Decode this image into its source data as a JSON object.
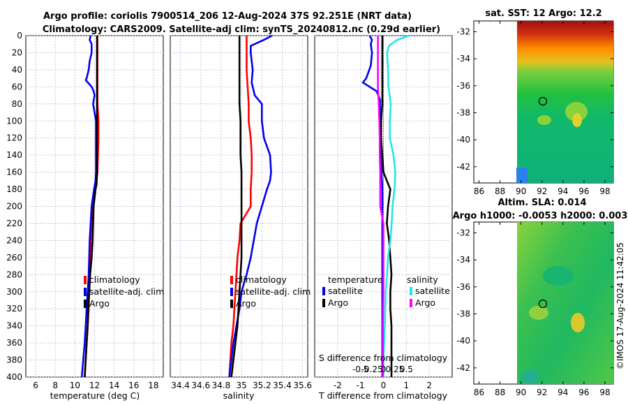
{
  "title_line1": "Argo profile: coriolis 7900514_206 12-Aug-2024 37S 92.251E (NRT data)",
  "title_line2": "Climatology: CARS2009. Satellite-adj clim: synTS_20240812.nc (0.29d earlier)",
  "colors": {
    "climatology": "#ff0000",
    "satellite": "#0000ee",
    "argo": "#000000",
    "sal_satellite": "#22e6e6",
    "sal_argo": "#ff00ff"
  },
  "chart_data": [
    {
      "type": "line",
      "id": "temperature",
      "xlabel": "temperature (deg C)",
      "xlim": [
        5,
        19
      ],
      "ylim": [
        0,
        400
      ],
      "xticks": [
        6,
        8,
        10,
        12,
        14,
        16,
        18
      ],
      "yticks": [
        0,
        20,
        40,
        60,
        80,
        100,
        120,
        140,
        160,
        180,
        200,
        220,
        240,
        260,
        280,
        300,
        320,
        340,
        360,
        380,
        400
      ],
      "series": [
        {
          "name": "climatology",
          "color": "#ff0000",
          "depth": [
            0,
            20,
            40,
            60,
            80,
            100,
            120,
            140,
            160,
            170,
            180,
            200,
            220,
            240,
            260,
            280,
            300,
            320,
            340,
            360,
            380,
            400
          ],
          "values": [
            12.3,
            12.3,
            12.3,
            12.3,
            12.3,
            12.4,
            12.4,
            12.35,
            12.3,
            12.2,
            12.1,
            11.9,
            11.7,
            11.6,
            11.55,
            11.5,
            11.45,
            11.4,
            11.3,
            11.2,
            11.1,
            11.0
          ]
        },
        {
          "name": "satellite-adj. clim",
          "color": "#0000ee",
          "depth": [
            0,
            5,
            10,
            20,
            30,
            40,
            50,
            52,
            60,
            65,
            70,
            80,
            90,
            100,
            110,
            120,
            140,
            160,
            170,
            180,
            200,
            220,
            240,
            260,
            280,
            300,
            320,
            340,
            360,
            380,
            400
          ],
          "values": [
            11.6,
            11.5,
            11.7,
            11.7,
            11.5,
            11.4,
            11.2,
            11.1,
            11.7,
            11.9,
            12.0,
            11.85,
            12.0,
            12.15,
            12.15,
            12.15,
            12.15,
            12.15,
            12.1,
            11.95,
            11.7,
            11.6,
            11.5,
            11.45,
            11.4,
            11.3,
            11.2,
            11.1,
            11.0,
            10.85,
            10.7
          ]
        },
        {
          "name": "Argo",
          "color": "#000000",
          "depth": [
            0,
            20,
            40,
            60,
            80,
            100,
            120,
            140,
            160,
            175,
            180,
            200,
            220,
            240,
            260,
            280,
            300,
            320,
            340,
            360,
            380,
            400
          ],
          "values": [
            12.25,
            12.25,
            12.25,
            12.25,
            12.25,
            12.25,
            12.25,
            12.25,
            12.25,
            12.2,
            12.1,
            11.9,
            11.85,
            11.8,
            11.7,
            11.55,
            11.45,
            11.35,
            11.3,
            11.2,
            11.1,
            11.0
          ]
        }
      ],
      "legend": [
        "climatology",
        "satellite-adj. clim",
        "Argo"
      ]
    },
    {
      "type": "line",
      "id": "salinity",
      "xlabel": "salinity",
      "xlim": [
        34.3,
        35.65
      ],
      "xticks": [
        "34.4",
        "34.6",
        "34.8",
        "35",
        "35.2",
        "35.4",
        "35.6"
      ],
      "series": [
        {
          "name": "climatology",
          "color": "#ff0000",
          "depth": [
            0,
            20,
            40,
            60,
            80,
            100,
            120,
            140,
            160,
            180,
            200,
            220,
            240,
            260,
            280,
            300,
            320,
            340,
            360,
            380,
            400
          ],
          "values": [
            35.05,
            35.05,
            35.05,
            35.06,
            35.07,
            35.07,
            35.09,
            35.1,
            35.1,
            35.09,
            35.09,
            34.99,
            34.98,
            34.96,
            34.95,
            34.94,
            34.93,
            34.92,
            34.9,
            34.89,
            34.88
          ]
        },
        {
          "name": "satellite-adj. clim",
          "color": "#0000ee",
          "depth": [
            0,
            5,
            12,
            20,
            40,
            55,
            70,
            80,
            100,
            120,
            140,
            160,
            170,
            180,
            200,
            220,
            240,
            260,
            280,
            300,
            320,
            340,
            360,
            380,
            400
          ],
          "values": [
            35.3,
            35.22,
            35.09,
            35.09,
            35.11,
            35.1,
            35.13,
            35.2,
            35.2,
            35.22,
            35.28,
            35.29,
            35.28,
            35.25,
            35.2,
            35.15,
            35.12,
            35.09,
            35.05,
            35.0,
            34.98,
            34.95,
            34.92,
            34.9,
            34.88
          ]
        },
        {
          "name": "Argo",
          "color": "#000000",
          "depth": [
            0,
            20,
            40,
            60,
            80,
            100,
            120,
            140,
            160,
            180,
            200,
            220,
            240,
            260,
            280,
            300,
            320,
            340,
            360,
            380,
            400
          ],
          "values": [
            34.98,
            34.98,
            34.98,
            34.98,
            34.98,
            34.99,
            34.99,
            34.99,
            35.0,
            35.0,
            35.0,
            35.0,
            35.0,
            35.0,
            34.99,
            34.98,
            34.97,
            34.96,
            34.94,
            34.92,
            34.9
          ]
        }
      ],
      "legend": [
        "climatology",
        "satellite-adj. clim",
        "Argo"
      ]
    },
    {
      "type": "line",
      "id": "difference",
      "xlabel": "T difference from climatology",
      "xlim": [
        -3,
        3
      ],
      "xticks": [
        "-2",
        "-1",
        "0",
        "1",
        "2"
      ],
      "secondary_axis_label": "S difference from climatology",
      "secondary_ticks": [
        "-0.5",
        "-0.25",
        "0",
        "0.25",
        "0.5"
      ],
      "series": [
        {
          "name": "temperature satellite",
          "color": "#0000ee",
          "depth": [
            0,
            5,
            10,
            20,
            35,
            50,
            55,
            65,
            75,
            90,
            110,
            150,
            180,
            220,
            260,
            300,
            340,
            380,
            400
          ],
          "values": [
            -0.6,
            -0.5,
            -0.55,
            -0.5,
            -0.55,
            -0.75,
            -0.9,
            -0.3,
            -0.15,
            -0.15,
            -0.15,
            -0.1,
            -0.05,
            -0.05,
            -0.05,
            -0.05,
            -0.05,
            -0.05,
            -0.05
          ]
        },
        {
          "name": "temperature Argo",
          "color": "#000000",
          "depth": [
            0,
            20,
            40,
            60,
            80,
            100,
            120,
            140,
            160,
            170,
            180,
            200,
            220,
            240,
            260,
            280,
            300,
            320,
            340,
            360,
            380,
            400
          ],
          "values": [
            -0.05,
            -0.05,
            -0.05,
            -0.05,
            -0.05,
            -0.1,
            -0.1,
            -0.05,
            0.0,
            0.15,
            0.3,
            0.2,
            0.15,
            0.25,
            0.3,
            0.35,
            0.3,
            0.3,
            0.35,
            0.35,
            0.35,
            0.35
          ]
        },
        {
          "name": "salinity satellite",
          "color": "#22e6e6",
          "depth": [
            0,
            5,
            12,
            20,
            40,
            60,
            80,
            100,
            120,
            140,
            160,
            180,
            200,
            220,
            240,
            260,
            280,
            300,
            340,
            380,
            400
          ],
          "values": [
            0.56,
            0.3,
            0.12,
            0.08,
            0.1,
            0.11,
            0.16,
            0.14,
            0.14,
            0.22,
            0.26,
            0.24,
            0.2,
            0.18,
            0.15,
            0.1,
            0.08,
            0.05,
            0.03,
            0.0,
            0.0
          ]
        },
        {
          "name": "salinity Argo",
          "color": "#ff00ff",
          "depth": [
            0,
            20,
            40,
            60,
            80,
            100,
            120,
            140,
            160,
            180,
            200,
            220,
            240,
            260,
            280,
            300,
            340,
            380,
            400
          ],
          "values": [
            -0.12,
            -0.12,
            -0.12,
            -0.12,
            -0.1,
            -0.09,
            -0.08,
            -0.08,
            -0.07,
            -0.07,
            -0.07,
            0.0,
            0.0,
            0.0,
            0.0,
            0.0,
            -0.01,
            -0.01,
            -0.01
          ]
        }
      ],
      "legend_headers": [
        "temperature",
        "salinity"
      ],
      "legend": [
        "satellite",
        "Argo",
        "satellite",
        "Argo"
      ]
    },
    {
      "type": "heatmap",
      "id": "sst_map",
      "title": "sat. SST: 12 Argo: 12.2",
      "xticks": [
        "86",
        "88",
        "90",
        "92",
        "94",
        "96",
        "98"
      ],
      "yticks": [
        "-32",
        "-34",
        "-36",
        "-38",
        "-40",
        "-42"
      ],
      "xlim": [
        85.5,
        98.8
      ],
      "ylim": [
        -43.2,
        -31.2
      ],
      "data_extent": {
        "lon": [
          90,
          98.8
        ],
        "lat": [
          -43.2,
          -31.2
        ]
      },
      "marker": {
        "lon": 92.25,
        "lat": -37.0
      }
    },
    {
      "type": "heatmap",
      "id": "sla_map",
      "title_line1": "Altim. SLA: 0.014",
      "title_line2": "Argo h1000: -0.0053 h2000: 0.003",
      "xticks": [
        "86",
        "88",
        "90",
        "92",
        "94",
        "96",
        "98"
      ],
      "yticks": [
        "-32",
        "-34",
        "-36",
        "-38",
        "-40",
        "-42"
      ],
      "xlim": [
        85.5,
        98.8
      ],
      "ylim": [
        -43.2,
        -31.2
      ],
      "data_extent": {
        "lon": [
          90,
          98.8
        ],
        "lat": [
          -43.2,
          -31.2
        ]
      },
      "marker": {
        "lon": 92.25,
        "lat": -37.0
      }
    }
  ],
  "stamp": "©IMOS 17-Aug-2024 11:42:05"
}
